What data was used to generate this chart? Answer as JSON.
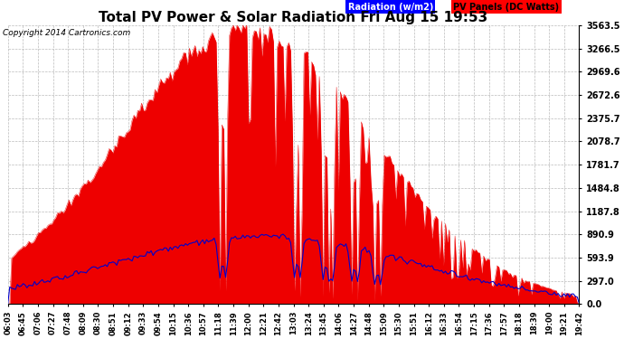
{
  "title": "Total PV Power & Solar Radiation Fri Aug 15 19:53",
  "copyright": "Copyright 2014 Cartronics.com",
  "legend_radiation": "Radiation (w/m2)",
  "legend_pv": "PV Panels (DC Watts)",
  "ymax": 3563.5,
  "yticks": [
    0.0,
    297.0,
    593.9,
    890.9,
    1187.8,
    1484.8,
    1781.7,
    2078.7,
    2375.7,
    2672.6,
    2969.6,
    3266.5,
    3563.5
  ],
  "bg_color": "#ffffff",
  "fill_color": "#ee0000",
  "line_color": "#0000cc",
  "grid_color": "#aaaaaa",
  "xtick_labels": [
    "06:03",
    "06:45",
    "07:06",
    "07:27",
    "07:48",
    "08:09",
    "08:30",
    "08:51",
    "09:12",
    "09:33",
    "09:54",
    "10:15",
    "10:36",
    "10:57",
    "11:18",
    "11:39",
    "12:00",
    "12:21",
    "12:42",
    "13:03",
    "13:24",
    "13:45",
    "14:06",
    "14:27",
    "14:48",
    "15:09",
    "15:30",
    "15:51",
    "16:12",
    "16:33",
    "16:54",
    "17:15",
    "17:36",
    "17:57",
    "18:18",
    "18:39",
    "19:00",
    "19:21",
    "19:42"
  ],
  "title_fontsize": 11,
  "tick_fontsize": 6,
  "ytick_fontsize": 7
}
